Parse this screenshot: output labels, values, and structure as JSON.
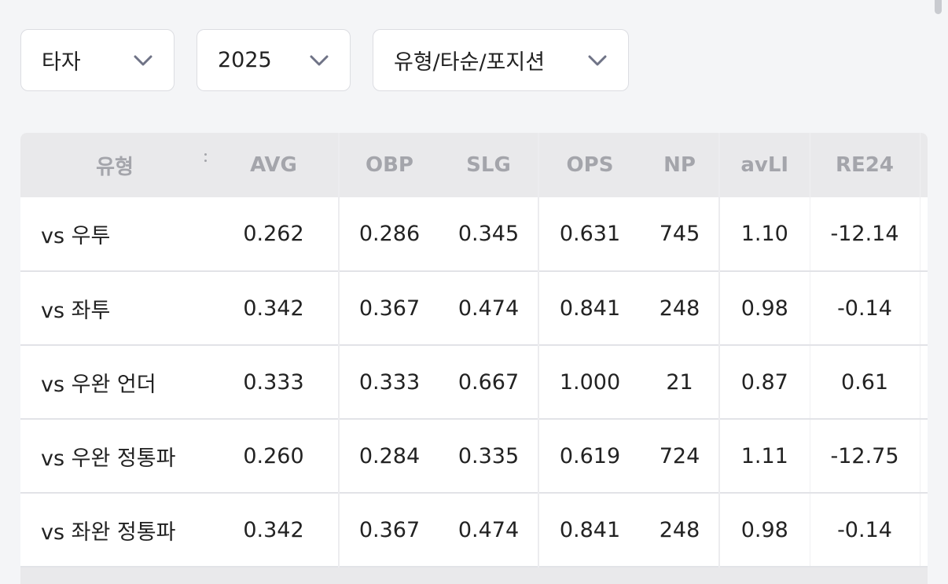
{
  "filters": {
    "player_type": "타자",
    "year": "2025",
    "category": "유형/타순/포지션"
  },
  "icons": {
    "dropdown": "chevron-down-icon",
    "column_menu": "more-vertical-icon"
  },
  "colors": {
    "background": "#f4f5f7",
    "header_bg": "#e9e9eb",
    "header_text": "#a4a5ab",
    "chevron": "#6f7386"
  },
  "table": {
    "headers": [
      "유형",
      "AVG",
      "OBP",
      "SLG",
      "OPS",
      "NP",
      "avLI",
      "RE24"
    ],
    "rows": [
      [
        "vs 우투",
        "0.262",
        "0.286",
        "0.345",
        "0.631",
        "745",
        "1.10",
        "-12.14"
      ],
      [
        "vs 좌투",
        "0.342",
        "0.367",
        "0.474",
        "0.841",
        "248",
        "0.98",
        "-0.14"
      ],
      [
        "vs 우완 언더",
        "0.333",
        "0.333",
        "0.667",
        "1.000",
        "21",
        "0.87",
        "0.61"
      ],
      [
        "vs 우완 정통파",
        "0.260",
        "0.284",
        "0.335",
        "0.619",
        "724",
        "1.11",
        "-12.75"
      ],
      [
        "vs 좌완 정통파",
        "0.342",
        "0.367",
        "0.474",
        "0.841",
        "248",
        "0.98",
        "-0.14"
      ]
    ]
  }
}
